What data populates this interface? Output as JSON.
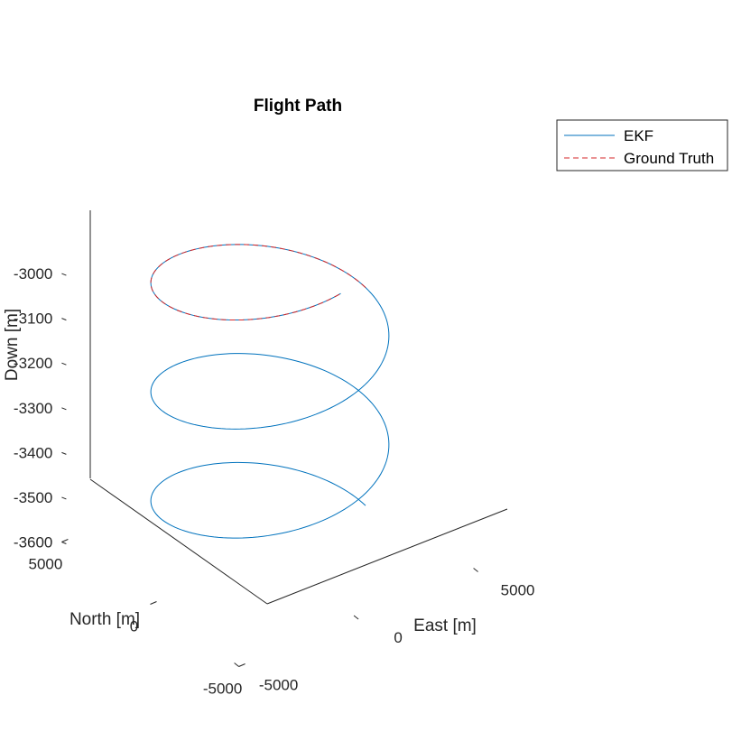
{
  "chart_data": {
    "type": "line",
    "projection": "3d",
    "title": "Flight Path",
    "xlabel": "East [m]",
    "ylabel": "North [m]",
    "zlabel": "Down [m]",
    "xlim": [
      -5000,
      5000
    ],
    "ylim": [
      -5000,
      5000
    ],
    "zlim": [
      -3600,
      -3000
    ],
    "xticks": [
      "-5000",
      "0",
      "5000"
    ],
    "yticks": [
      "-5000",
      "0",
      "5000"
    ],
    "zticks": [
      "-3000",
      "-3100",
      "-3200",
      "-3300",
      "-3400",
      "-3500",
      "-3600"
    ],
    "grid": false,
    "legend_position": "outside top-right",
    "helix": {
      "radius": 4000,
      "center_east": 0,
      "center_north": 0,
      "down_start": -3570,
      "down_end": -2900,
      "turns": 2.75
    },
    "series": [
      {
        "name": "EKF",
        "color": "#0072BD",
        "style": "solid",
        "turns_from": 0,
        "turns_to": 2.75
      },
      {
        "name": "Ground Truth",
        "color": "#D62728",
        "style": "dashed",
        "turns_from": 2.0,
        "turns_to": 2.75
      }
    ]
  }
}
